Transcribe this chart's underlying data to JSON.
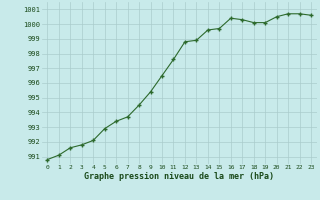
{
  "x": [
    0,
    1,
    2,
    3,
    4,
    5,
    6,
    7,
    8,
    9,
    10,
    11,
    12,
    13,
    14,
    15,
    16,
    17,
    18,
    19,
    20,
    21,
    22,
    23
  ],
  "y": [
    990.8,
    991.1,
    991.6,
    991.8,
    992.1,
    992.9,
    993.4,
    993.7,
    994.5,
    995.4,
    996.5,
    997.6,
    998.8,
    998.9,
    999.6,
    999.7,
    1000.4,
    1000.3,
    1000.1,
    1000.1,
    1000.5,
    1000.7,
    1000.7,
    1000.6
  ],
  "line_color": "#2d6a2d",
  "marker_color": "#2d6a2d",
  "bg_color": "#c8eaea",
  "grid_color": "#aacccc",
  "xlabel": "Graphe pression niveau de la mer (hPa)",
  "xlabel_color": "#1a4a1a",
  "tick_color": "#1a4a1a",
  "ylim": [
    990.5,
    1001.5
  ],
  "yticks": [
    991,
    992,
    993,
    994,
    995,
    996,
    997,
    998,
    999,
    1000,
    1001
  ],
  "xticks": [
    0,
    1,
    2,
    3,
    4,
    5,
    6,
    7,
    8,
    9,
    10,
    11,
    12,
    13,
    14,
    15,
    16,
    17,
    18,
    19,
    20,
    21,
    22,
    23
  ]
}
